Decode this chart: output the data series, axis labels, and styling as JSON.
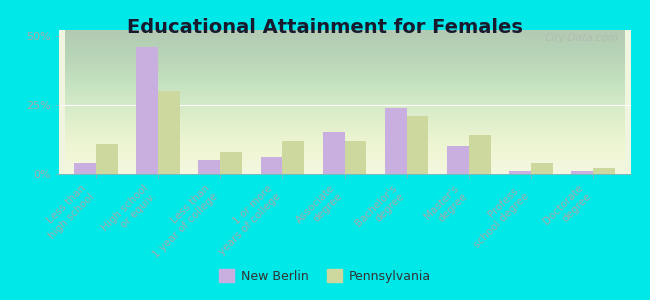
{
  "title": "Educational Attainment for Females",
  "categories": [
    "Less than\nhigh school",
    "High school\nor equiv.",
    "Less than\n1 year of college",
    "1 or more\nyears of college",
    "Associate\ndegree",
    "Bachelor's\ndegree",
    "Master's\ndegree",
    "Profess.\nschool degree",
    "Doctorate\ndegree"
  ],
  "new_berlin": [
    4,
    46,
    5,
    6,
    15,
    24,
    10,
    1,
    1
  ],
  "pennsylvania": [
    11,
    30,
    8,
    12,
    12,
    21,
    14,
    4,
    2
  ],
  "color_nb": "#c9aee0",
  "color_pa": "#ccd89e",
  "bg_chart_bottom": "#d4e8b0",
  "bg_chart_top": "#f0f5e0",
  "bg_outer": "#00e8e8",
  "ylim": [
    0,
    52
  ],
  "yticks": [
    0,
    25,
    50
  ],
  "ytick_labels": [
    "0%",
    "25%",
    "50%"
  ],
  "bar_width": 0.35,
  "legend_labels": [
    "New Berlin",
    "Pennsylvania"
  ],
  "title_fontsize": 14,
  "tick_fontsize": 7.5,
  "legend_fontsize": 9
}
